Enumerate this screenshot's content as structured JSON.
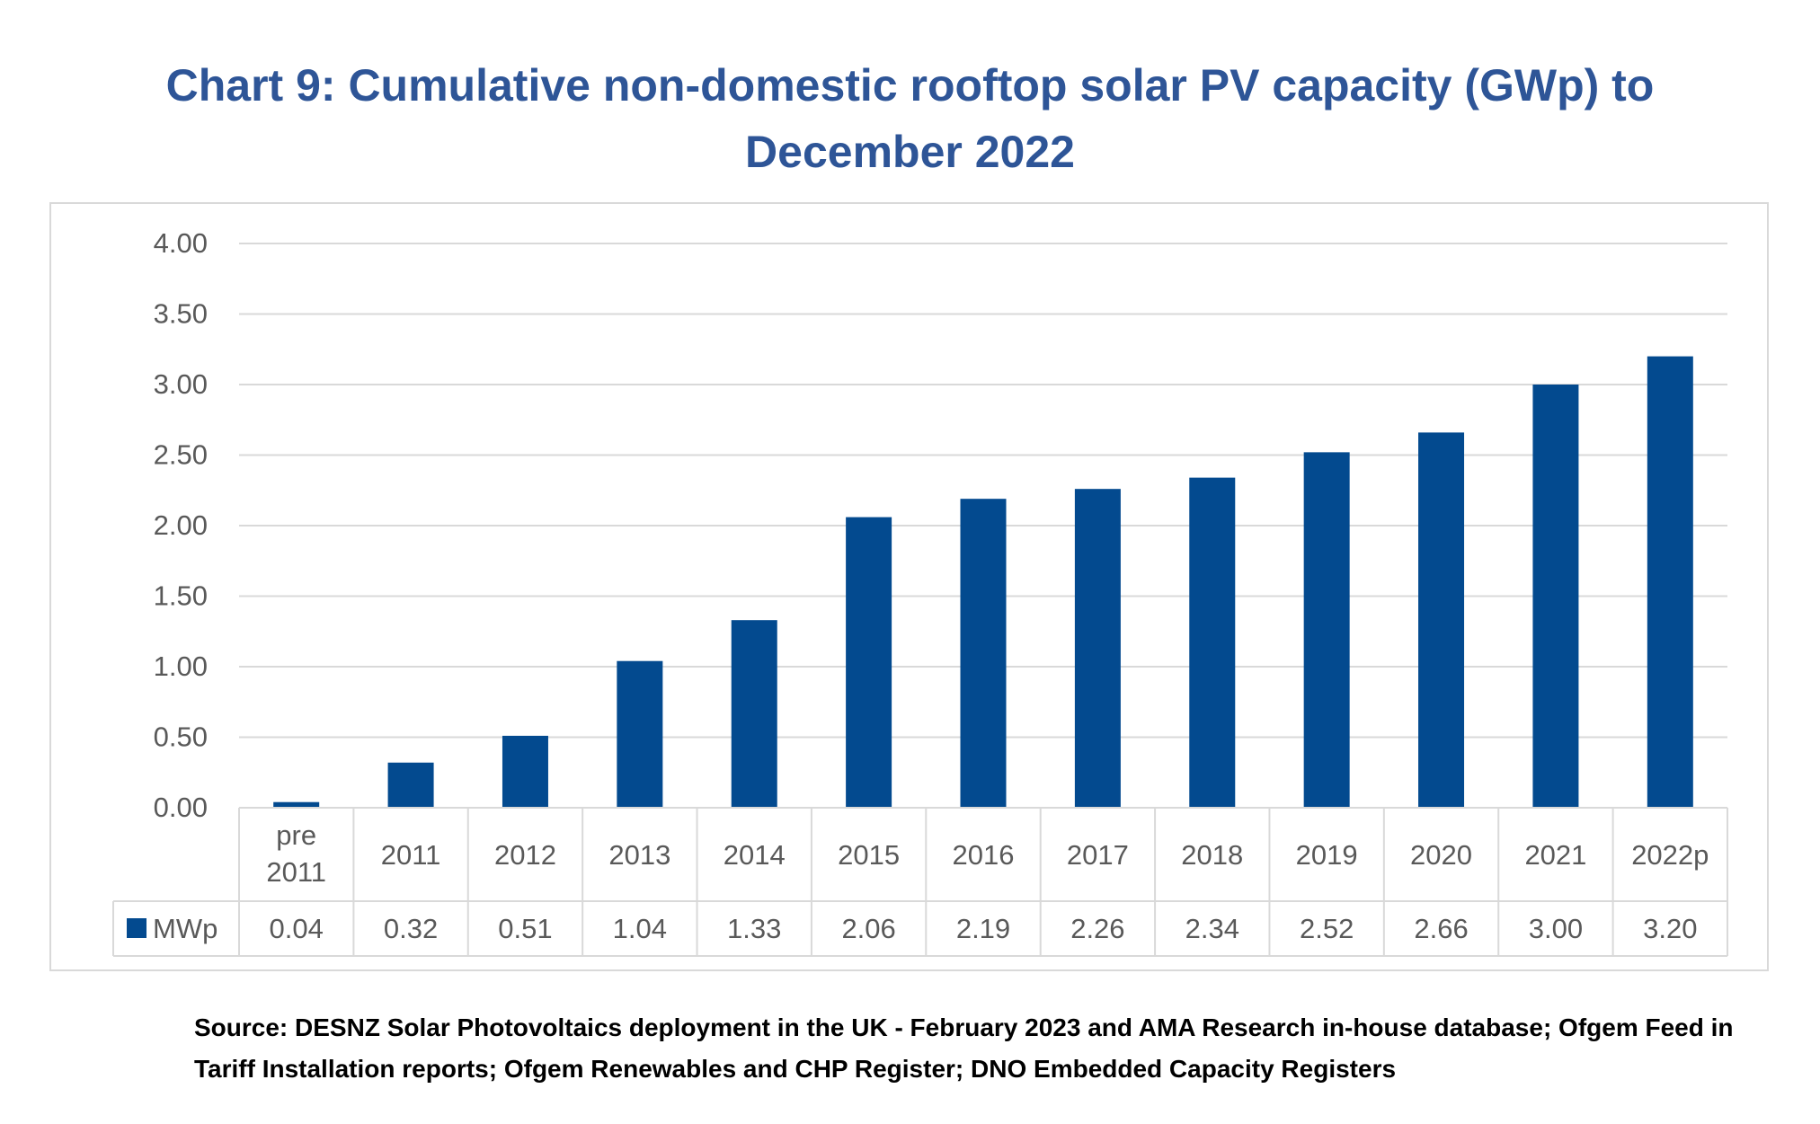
{
  "title_lines": [
    "Chart 9: Cumulative non-domestic rooftop solar PV capacity (GWp) to",
    "December 2022"
  ],
  "source_lines": [
    "Source: DESNZ Solar Photovoltaics deployment in the UK - February 2023 and AMA Research in-house database; Ofgem Feed in",
    "Tariff Installation reports; Ofgem Renewables and CHP Register; DNO Embedded Capacity Registers"
  ],
  "colors": {
    "title": "#2E5597",
    "bar": "#034A8F",
    "grid": "#D9D9D9",
    "axis_text": "#595959",
    "frame": "#D9D9D9"
  },
  "chart_data": {
    "type": "bar",
    "title": "Chart 9: Cumulative non-domestic rooftop solar PV capacity (GWp) to December 2022",
    "categories": [
      [
        "pre",
        "2011"
      ],
      [
        "2011"
      ],
      [
        "2012"
      ],
      [
        "2013"
      ],
      [
        "2014"
      ],
      [
        "2015"
      ],
      [
        "2016"
      ],
      [
        "2017"
      ],
      [
        "2018"
      ],
      [
        "2019"
      ],
      [
        "2020"
      ],
      [
        "2021"
      ],
      [
        "2022p"
      ]
    ],
    "series": [
      {
        "name": "MWp",
        "values": [
          0.04,
          0.32,
          0.51,
          1.04,
          1.33,
          2.06,
          2.19,
          2.26,
          2.34,
          2.52,
          2.66,
          3.0,
          3.2
        ]
      }
    ],
    "table_values": [
      "0.04",
      "0.32",
      "0.51",
      "1.04",
      "1.33",
      "2.06",
      "2.19",
      "2.26",
      "2.34",
      "2.52",
      "2.66",
      "3.00",
      "3.20"
    ],
    "yticks": [
      "0.00",
      "0.50",
      "1.00",
      "1.50",
      "2.00",
      "2.50",
      "3.00",
      "3.50",
      "4.00"
    ],
    "ylim": [
      0,
      4
    ],
    "grid": true,
    "legend": "data table",
    "xlabel": "",
    "ylabel": ""
  }
}
